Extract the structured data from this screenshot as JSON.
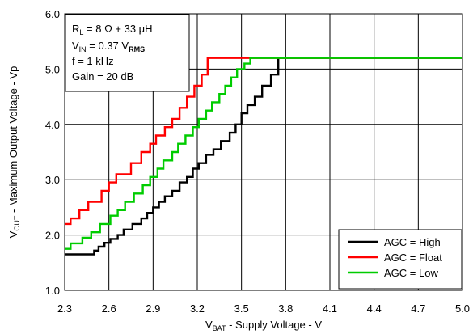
{
  "chart_data": {
    "type": "line",
    "xlabel": {
      "base": "V",
      "sub": "BAT",
      "rest": " - Supply Voltage - V"
    },
    "ylabel": {
      "base": "V",
      "sub": "OUT",
      "rest": " - Maximum Output Voltage - Vp"
    },
    "xlim": [
      2.3,
      5.0
    ],
    "ylim": [
      1.0,
      6.0
    ],
    "x_ticks": [
      "2.3",
      "2.6",
      "2.9",
      "3.2",
      "3.5",
      "3.8",
      "4.1",
      "4.4",
      "4.7",
      "5.0"
    ],
    "y_ticks": [
      "1.0",
      "2.0",
      "3.0",
      "4.0",
      "5.0",
      "6.0"
    ],
    "grid": true,
    "legend_position": "bottom-right",
    "annotations": [
      {
        "base": "R",
        "sub": "L",
        "rest": " = 8 Ω + 33 μH"
      },
      {
        "base": "V",
        "sub": "IN",
        "rest": " = 0.37 V",
        "sub2": "RMS"
      },
      {
        "base": "f = 1 kHz"
      },
      {
        "base": "Gain = 20 dB"
      }
    ],
    "series": [
      {
        "name": "AGC = High",
        "color": "#000000",
        "x": [
          2.3,
          2.5,
          2.53,
          2.57,
          2.61,
          2.66,
          2.7,
          2.76,
          2.82,
          2.86,
          2.9,
          2.94,
          2.98,
          3.03,
          3.08,
          3.13,
          3.17,
          3.21,
          3.26,
          3.31,
          3.36,
          3.42,
          3.46,
          3.5,
          3.54,
          3.59,
          3.64,
          3.7,
          3.75,
          3.75,
          5.0
        ],
        "y": [
          1.65,
          1.72,
          1.79,
          1.86,
          1.93,
          2.0,
          2.1,
          2.2,
          2.3,
          2.4,
          2.5,
          2.6,
          2.7,
          2.8,
          2.95,
          3.05,
          3.2,
          3.3,
          3.45,
          3.55,
          3.7,
          3.85,
          4.0,
          4.2,
          4.35,
          4.5,
          4.7,
          4.9,
          5.15,
          5.2,
          5.2
        ]
      },
      {
        "name": "AGC = Float",
        "color": "#ff0000",
        "x": [
          2.3,
          2.34,
          2.4,
          2.46,
          2.55,
          2.6,
          2.65,
          2.75,
          2.82,
          2.88,
          2.92,
          2.98,
          3.03,
          3.08,
          3.13,
          3.18,
          3.23,
          3.27,
          3.27,
          5.0
        ],
        "y": [
          2.2,
          2.3,
          2.45,
          2.6,
          2.8,
          2.95,
          3.1,
          3.3,
          3.5,
          3.65,
          3.8,
          3.95,
          4.1,
          4.3,
          4.5,
          4.7,
          4.9,
          5.1,
          5.2,
          5.2
        ]
      },
      {
        "name": "AGC = Low",
        "color": "#00cc00",
        "x": [
          2.3,
          2.34,
          2.42,
          2.48,
          2.54,
          2.61,
          2.66,
          2.71,
          2.77,
          2.83,
          2.88,
          2.93,
          2.97,
          3.03,
          3.07,
          3.12,
          3.17,
          3.21,
          3.26,
          3.3,
          3.35,
          3.39,
          3.43,
          3.47,
          3.52,
          3.56,
          3.56,
          5.0
        ],
        "y": [
          1.75,
          1.85,
          1.95,
          2.05,
          2.2,
          2.35,
          2.45,
          2.6,
          2.75,
          2.9,
          3.05,
          3.2,
          3.35,
          3.5,
          3.65,
          3.8,
          3.95,
          4.1,
          4.25,
          4.4,
          4.55,
          4.7,
          4.85,
          5.0,
          5.1,
          5.15,
          5.2,
          5.2
        ]
      }
    ]
  }
}
